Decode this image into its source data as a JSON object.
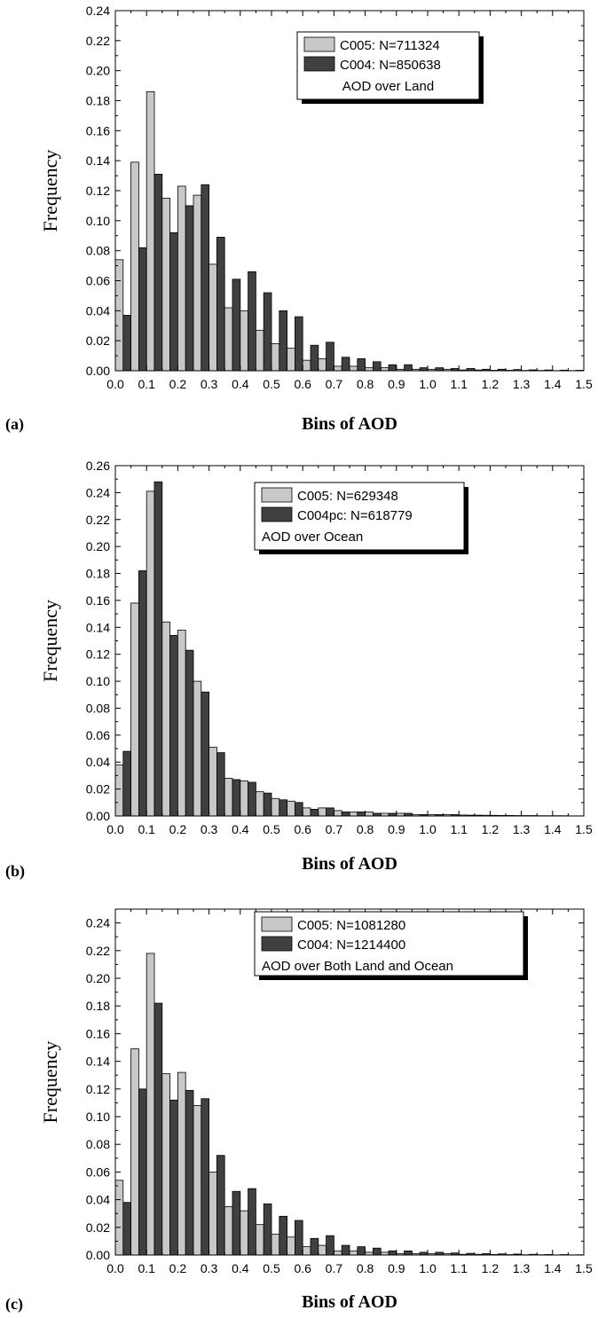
{
  "chart_data": [
    {
      "type": "bar",
      "panel_label": "(a)",
      "xlabel": "Bins of AOD",
      "ylabel": "Frequency",
      "xlim": [
        0.0,
        1.5
      ],
      "ylim": [
        0.0,
        0.24
      ],
      "x_ticks": [
        "0.0",
        "0.1",
        "0.2",
        "0.3",
        "0.4",
        "0.5",
        "0.6",
        "0.7",
        "0.8",
        "0.9",
        "1.0",
        "1.1",
        "1.2",
        "1.3",
        "1.4",
        "1.5"
      ],
      "y_ticks": [
        "0.00",
        "0.02",
        "0.04",
        "0.06",
        "0.08",
        "0.10",
        "0.12",
        "0.14",
        "0.16",
        "0.18",
        "0.20",
        "0.22",
        "0.24"
      ],
      "legend_placement": "top-right",
      "legend_note": "AOD over Land",
      "x": [
        0.0,
        0.05,
        0.1,
        0.15,
        0.2,
        0.25,
        0.3,
        0.35,
        0.4,
        0.45,
        0.5,
        0.55,
        0.6,
        0.65,
        0.7,
        0.75,
        0.8,
        0.85,
        0.9,
        0.95,
        1.0,
        1.05,
        1.1,
        1.15,
        1.2,
        1.25,
        1.3,
        1.35,
        1.4,
        1.45
      ],
      "series": [
        {
          "name": "C005: N=711324",
          "color": "#c8c8c8",
          "values": [
            0.074,
            0.139,
            0.186,
            0.115,
            0.123,
            0.117,
            0.071,
            0.042,
            0.04,
            0.027,
            0.018,
            0.015,
            0.007,
            0.008,
            0.003,
            0.003,
            0.002,
            0.002,
            0.001,
            0.001,
            0.001,
            0.001,
            0.0005,
            0.0005,
            0.0003,
            0.0003,
            0.0002,
            0.0002,
            0.0001,
            0.0001
          ]
        },
        {
          "name": "C004: N=850638",
          "color": "#404040",
          "values": [
            0.037,
            0.082,
            0.131,
            0.092,
            0.11,
            0.124,
            0.089,
            0.061,
            0.066,
            0.052,
            0.04,
            0.036,
            0.017,
            0.019,
            0.009,
            0.008,
            0.006,
            0.004,
            0.004,
            0.002,
            0.002,
            0.0015,
            0.0015,
            0.001,
            0.001,
            0.0008,
            0.0006,
            0.0005,
            0.0004,
            0.0003
          ]
        }
      ]
    },
    {
      "type": "bar",
      "panel_label": "(b)",
      "xlabel": "Bins of AOD",
      "ylabel": "Frequency",
      "xlim": [
        0.0,
        1.5
      ],
      "ylim": [
        0.0,
        0.26
      ],
      "x_ticks": [
        "0.0",
        "0.1",
        "0.2",
        "0.3",
        "0.4",
        "0.5",
        "0.6",
        "0.7",
        "0.8",
        "0.9",
        "1.0",
        "1.1",
        "1.2",
        "1.3",
        "1.4",
        "1.5"
      ],
      "y_ticks": [
        "0.00",
        "0.02",
        "0.04",
        "0.06",
        "0.08",
        "0.10",
        "0.12",
        "0.14",
        "0.16",
        "0.18",
        "0.20",
        "0.22",
        "0.24",
        "0.26"
      ],
      "legend_placement": "top-right",
      "legend_note": "AOD over Ocean",
      "x": [
        0.0,
        0.05,
        0.1,
        0.15,
        0.2,
        0.25,
        0.3,
        0.35,
        0.4,
        0.45,
        0.5,
        0.55,
        0.6,
        0.65,
        0.7,
        0.75,
        0.8,
        0.85,
        0.9,
        0.95,
        1.0,
        1.05,
        1.1,
        1.15,
        1.2,
        1.25,
        1.3,
        1.35,
        1.4,
        1.45
      ],
      "series": [
        {
          "name": "C005: N=629348",
          "color": "#c8c8c8",
          "values": [
            0.038,
            0.158,
            0.241,
            0.144,
            0.138,
            0.1,
            0.051,
            0.028,
            0.026,
            0.018,
            0.013,
            0.011,
            0.006,
            0.006,
            0.004,
            0.003,
            0.003,
            0.002,
            0.002,
            0.001,
            0.001,
            0.001,
            0.0007,
            0.0006,
            0.0005,
            0.0004,
            0.0003,
            0.0002,
            0.0002,
            0.0001
          ]
        },
        {
          "name": "C004pc: N=618779",
          "color": "#404040",
          "values": [
            0.048,
            0.182,
            0.248,
            0.134,
            0.123,
            0.092,
            0.047,
            0.027,
            0.025,
            0.017,
            0.012,
            0.01,
            0.005,
            0.006,
            0.003,
            0.003,
            0.002,
            0.002,
            0.002,
            0.001,
            0.001,
            0.001,
            0.0006,
            0.0005,
            0.0004,
            0.0003,
            0.0003,
            0.0002,
            0.0002,
            0.0001
          ]
        }
      ]
    },
    {
      "type": "bar",
      "panel_label": "(c)",
      "xlabel": "Bins of AOD",
      "ylabel": "Frequency",
      "xlim": [
        0.0,
        1.5
      ],
      "ylim": [
        0.0,
        0.25
      ],
      "x_ticks": [
        "0.0",
        "0.1",
        "0.2",
        "0.3",
        "0.4",
        "0.5",
        "0.6",
        "0.7",
        "0.8",
        "0.9",
        "1.0",
        "1.1",
        "1.2",
        "1.3",
        "1.4",
        "1.5"
      ],
      "y_ticks": [
        "0.00",
        "0.02",
        "0.04",
        "0.06",
        "0.08",
        "0.10",
        "0.12",
        "0.14",
        "0.16",
        "0.18",
        "0.20",
        "0.22",
        "0.24"
      ],
      "legend_placement": "top-right",
      "legend_note": "AOD over Both Land and Ocean",
      "x": [
        0.0,
        0.05,
        0.1,
        0.15,
        0.2,
        0.25,
        0.3,
        0.35,
        0.4,
        0.45,
        0.5,
        0.55,
        0.6,
        0.65,
        0.7,
        0.75,
        0.8,
        0.85,
        0.9,
        0.95,
        1.0,
        1.05,
        1.1,
        1.15,
        1.2,
        1.25,
        1.3,
        1.35,
        1.4,
        1.45
      ],
      "series": [
        {
          "name": "C005: N=1081280",
          "color": "#c8c8c8",
          "values": [
            0.054,
            0.149,
            0.218,
            0.131,
            0.132,
            0.108,
            0.06,
            0.035,
            0.032,
            0.022,
            0.015,
            0.013,
            0.006,
            0.007,
            0.003,
            0.003,
            0.002,
            0.002,
            0.001,
            0.001,
            0.001,
            0.001,
            0.0005,
            0.0005,
            0.0004,
            0.0003,
            0.0002,
            0.0002,
            0.0001,
            0.0001
          ]
        },
        {
          "name": "C004: N=1214400",
          "color": "#404040",
          "values": [
            0.038,
            0.12,
            0.182,
            0.112,
            0.119,
            0.113,
            0.072,
            0.046,
            0.048,
            0.037,
            0.028,
            0.025,
            0.012,
            0.014,
            0.007,
            0.006,
            0.005,
            0.003,
            0.003,
            0.002,
            0.002,
            0.0015,
            0.0012,
            0.001,
            0.0008,
            0.0007,
            0.0005,
            0.0004,
            0.0003,
            0.0002
          ]
        }
      ]
    }
  ]
}
